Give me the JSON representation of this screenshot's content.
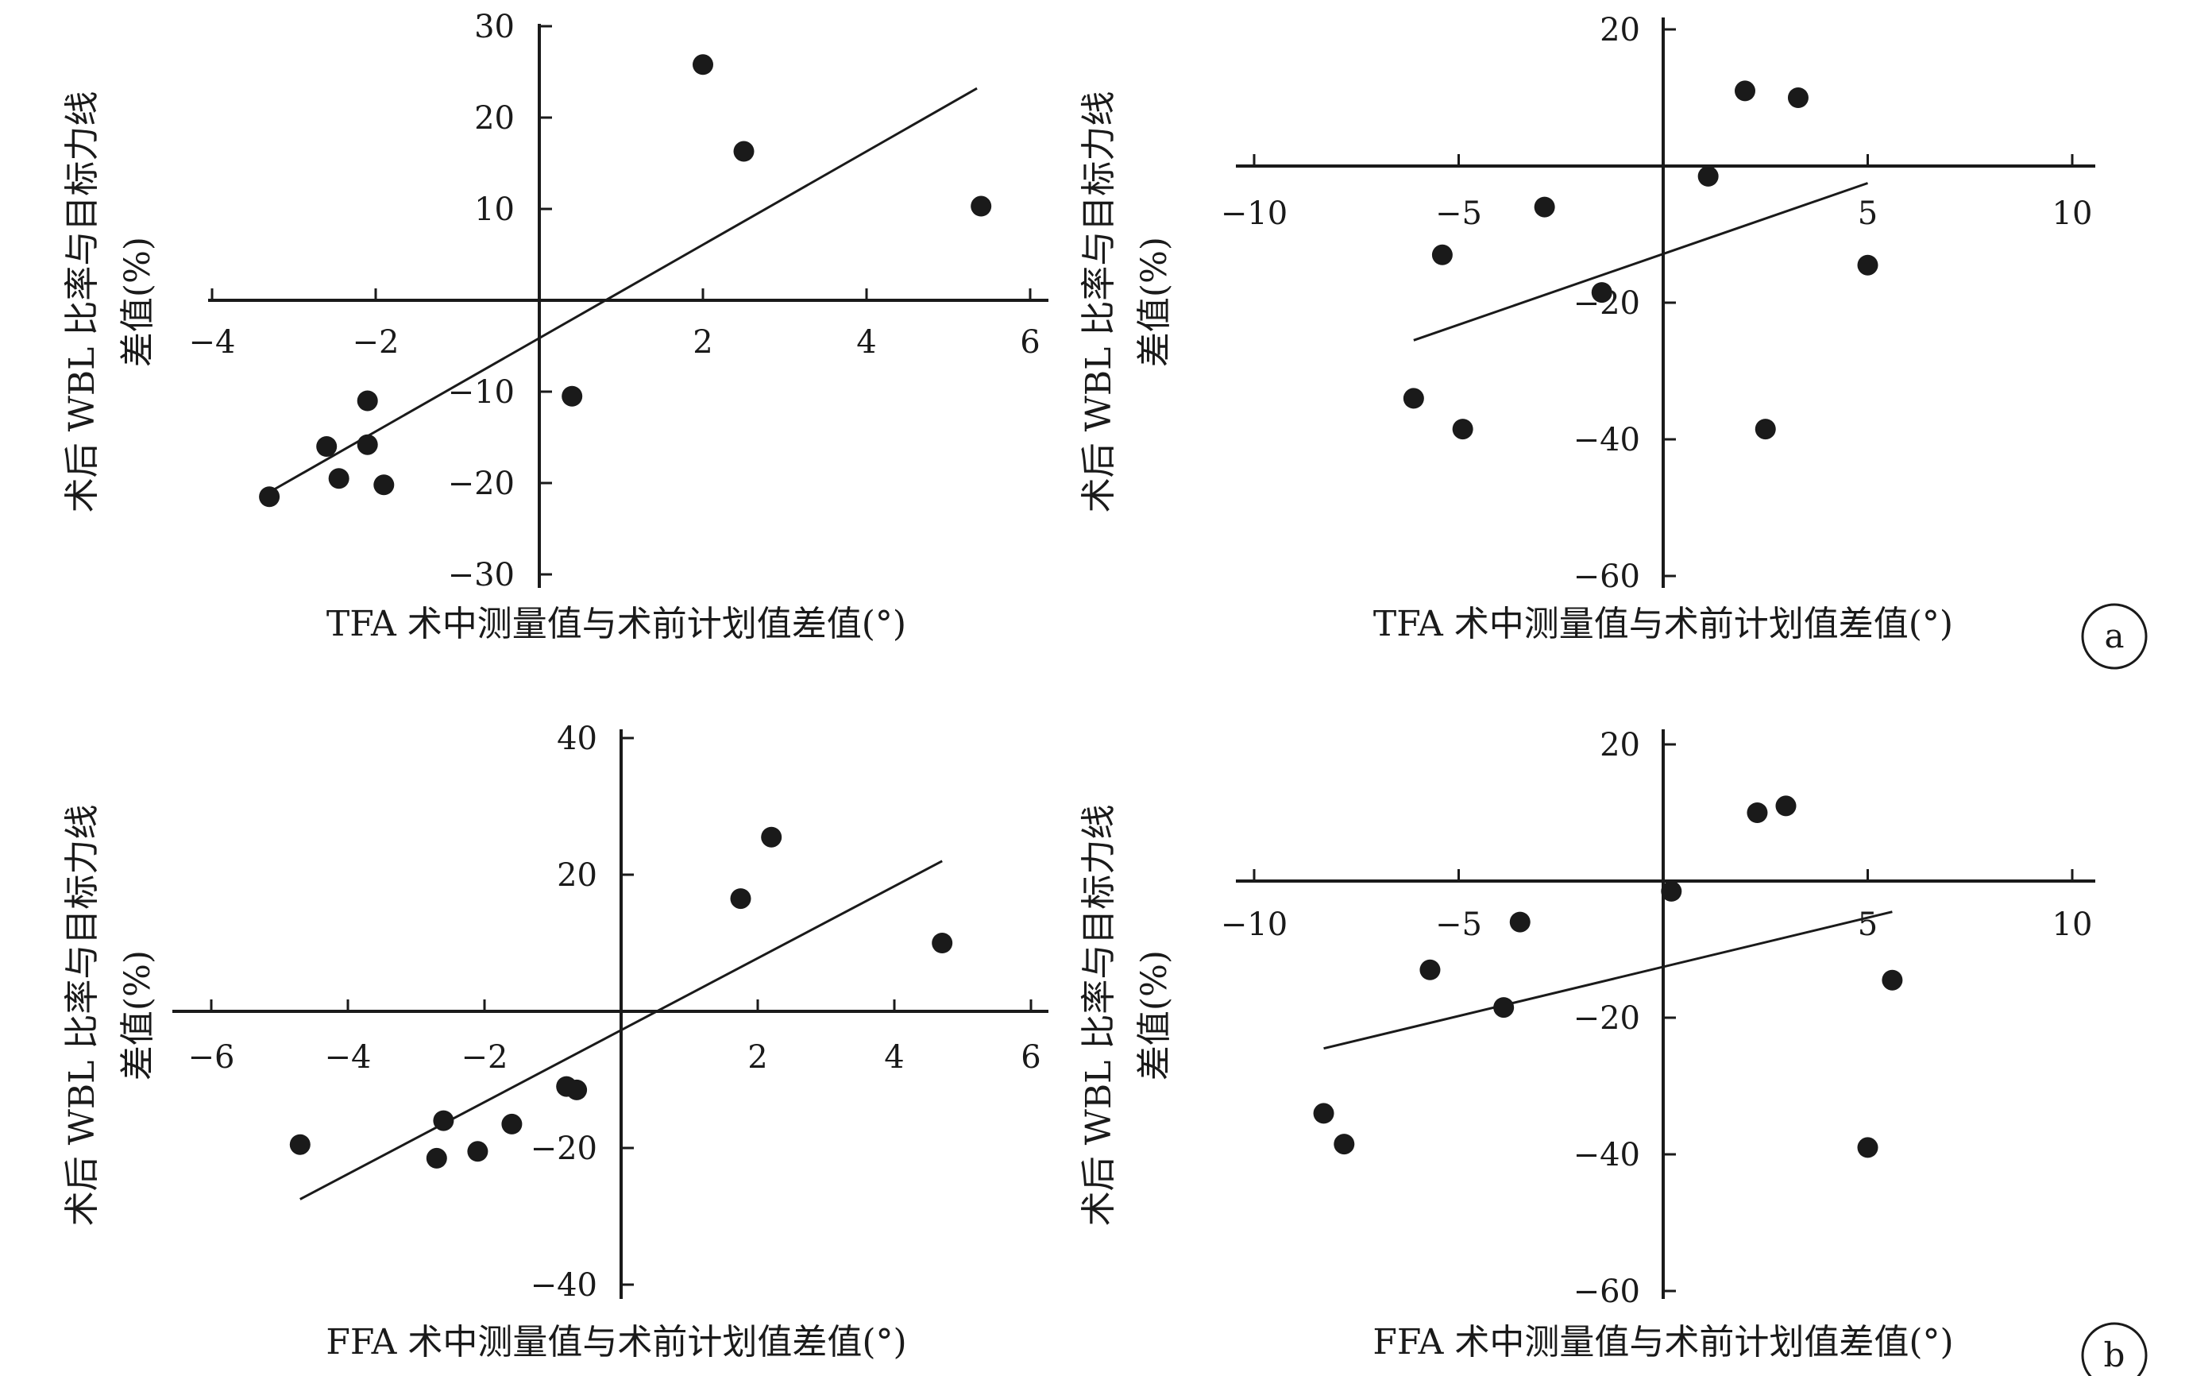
{
  "chart_data": [
    {
      "type": "scatter",
      "xlabel": "TFA 术中测量值与术前计划值差值(°)",
      "ylabel": [
        "术后 WBL 比率与目标力线",
        "差值(%)"
      ],
      "x_ticks": [
        -4,
        -2,
        2,
        4,
        6
      ],
      "y_ticks": [
        30,
        20,
        10,
        -10,
        -20,
        -30
      ],
      "xlim": [
        -4,
        6
      ],
      "ylim": [
        -30,
        30
      ],
      "points": [
        {
          "x": -3.3,
          "y": -21.5
        },
        {
          "x": -2.6,
          "y": -16.0
        },
        {
          "x": -2.45,
          "y": -19.5
        },
        {
          "x": -2.1,
          "y": -11.0
        },
        {
          "x": -2.1,
          "y": -15.8
        },
        {
          "x": -1.9,
          "y": -20.2
        },
        {
          "x": 0.4,
          "y": -10.5
        },
        {
          "x": 2.0,
          "y": 25.8
        },
        {
          "x": 2.5,
          "y": 16.3
        },
        {
          "x": 5.4,
          "y": 10.3
        }
      ],
      "trendline": [
        {
          "x": -3.3,
          "y": -21.0
        },
        {
          "x": 5.35,
          "y": 23.2
        }
      ]
    },
    {
      "type": "scatter",
      "xlabel": "TFA 术中测量值与术前计划值差值(°)",
      "ylabel": [
        "术后 WBL 比率与目标力线",
        "差值(%)"
      ],
      "x_ticks": [
        -10,
        -5,
        5,
        10
      ],
      "y_ticks": [
        20,
        -20,
        -40,
        -60
      ],
      "xlim": [
        -10,
        10
      ],
      "ylim": [
        -60,
        20
      ],
      "panel_label": "a",
      "points": [
        {
          "x": 2.0,
          "y": 11.0
        },
        {
          "x": 3.3,
          "y": 10.0
        },
        {
          "x": 1.1,
          "y": -1.5
        },
        {
          "x": -2.9,
          "y": -6.0
        },
        {
          "x": -5.4,
          "y": -13.0
        },
        {
          "x": -1.5,
          "y": -18.5
        },
        {
          "x": 5.0,
          "y": -14.5
        },
        {
          "x": -6.1,
          "y": -34.0
        },
        {
          "x": -4.9,
          "y": -38.5
        },
        {
          "x": 2.5,
          "y": -38.5
        }
      ],
      "trendline": [
        {
          "x": -6.1,
          "y": -25.5
        },
        {
          "x": 5.0,
          "y": -2.5
        }
      ]
    },
    {
      "type": "scatter",
      "xlabel": "FFA 术中测量值与术前计划值差值(°)",
      "ylabel": [
        "术后 WBL 比率与目标力线",
        "差值(%)"
      ],
      "x_ticks": [
        -6,
        -4,
        -2,
        2,
        4,
        6
      ],
      "y_ticks": [
        40,
        20,
        -20,
        -40
      ],
      "xlim": [
        -6,
        6
      ],
      "ylim": [
        -40,
        40
      ],
      "points": [
        {
          "x": -4.7,
          "y": -19.5
        },
        {
          "x": -2.6,
          "y": -16.0
        },
        {
          "x": -2.7,
          "y": -21.5
        },
        {
          "x": -2.1,
          "y": -20.5
        },
        {
          "x": -1.6,
          "y": -16.5
        },
        {
          "x": -0.8,
          "y": -11.0
        },
        {
          "x": -0.65,
          "y": -11.5
        },
        {
          "x": 1.75,
          "y": 16.5
        },
        {
          "x": 2.2,
          "y": 25.5
        },
        {
          "x": 4.7,
          "y": 10.0
        }
      ],
      "trendline": [
        {
          "x": -4.7,
          "y": -27.5
        },
        {
          "x": 4.7,
          "y": 22.0
        }
      ]
    },
    {
      "type": "scatter",
      "xlabel": "FFA 术中测量值与术前计划值差值(°)",
      "ylabel": [
        "术后 WBL 比率与目标力线",
        "差值(%)"
      ],
      "x_ticks": [
        -10,
        -5,
        5,
        10
      ],
      "y_ticks": [
        20,
        -20,
        -40,
        -60
      ],
      "xlim": [
        -10,
        10
      ],
      "ylim": [
        -60,
        20
      ],
      "panel_label": "b",
      "points": [
        {
          "x": 2.3,
          "y": 10.0
        },
        {
          "x": 3.0,
          "y": 11.0
        },
        {
          "x": 0.2,
          "y": -1.5
        },
        {
          "x": -3.5,
          "y": -6.0
        },
        {
          "x": -5.7,
          "y": -13.0
        },
        {
          "x": -3.9,
          "y": -18.5
        },
        {
          "x": 5.6,
          "y": -14.5
        },
        {
          "x": -8.3,
          "y": -34.0
        },
        {
          "x": -7.8,
          "y": -38.5
        },
        {
          "x": 5.0,
          "y": -39.0
        }
      ],
      "trendline": [
        {
          "x": -8.3,
          "y": -24.5
        },
        {
          "x": 5.6,
          "y": -4.5
        }
      ]
    }
  ]
}
